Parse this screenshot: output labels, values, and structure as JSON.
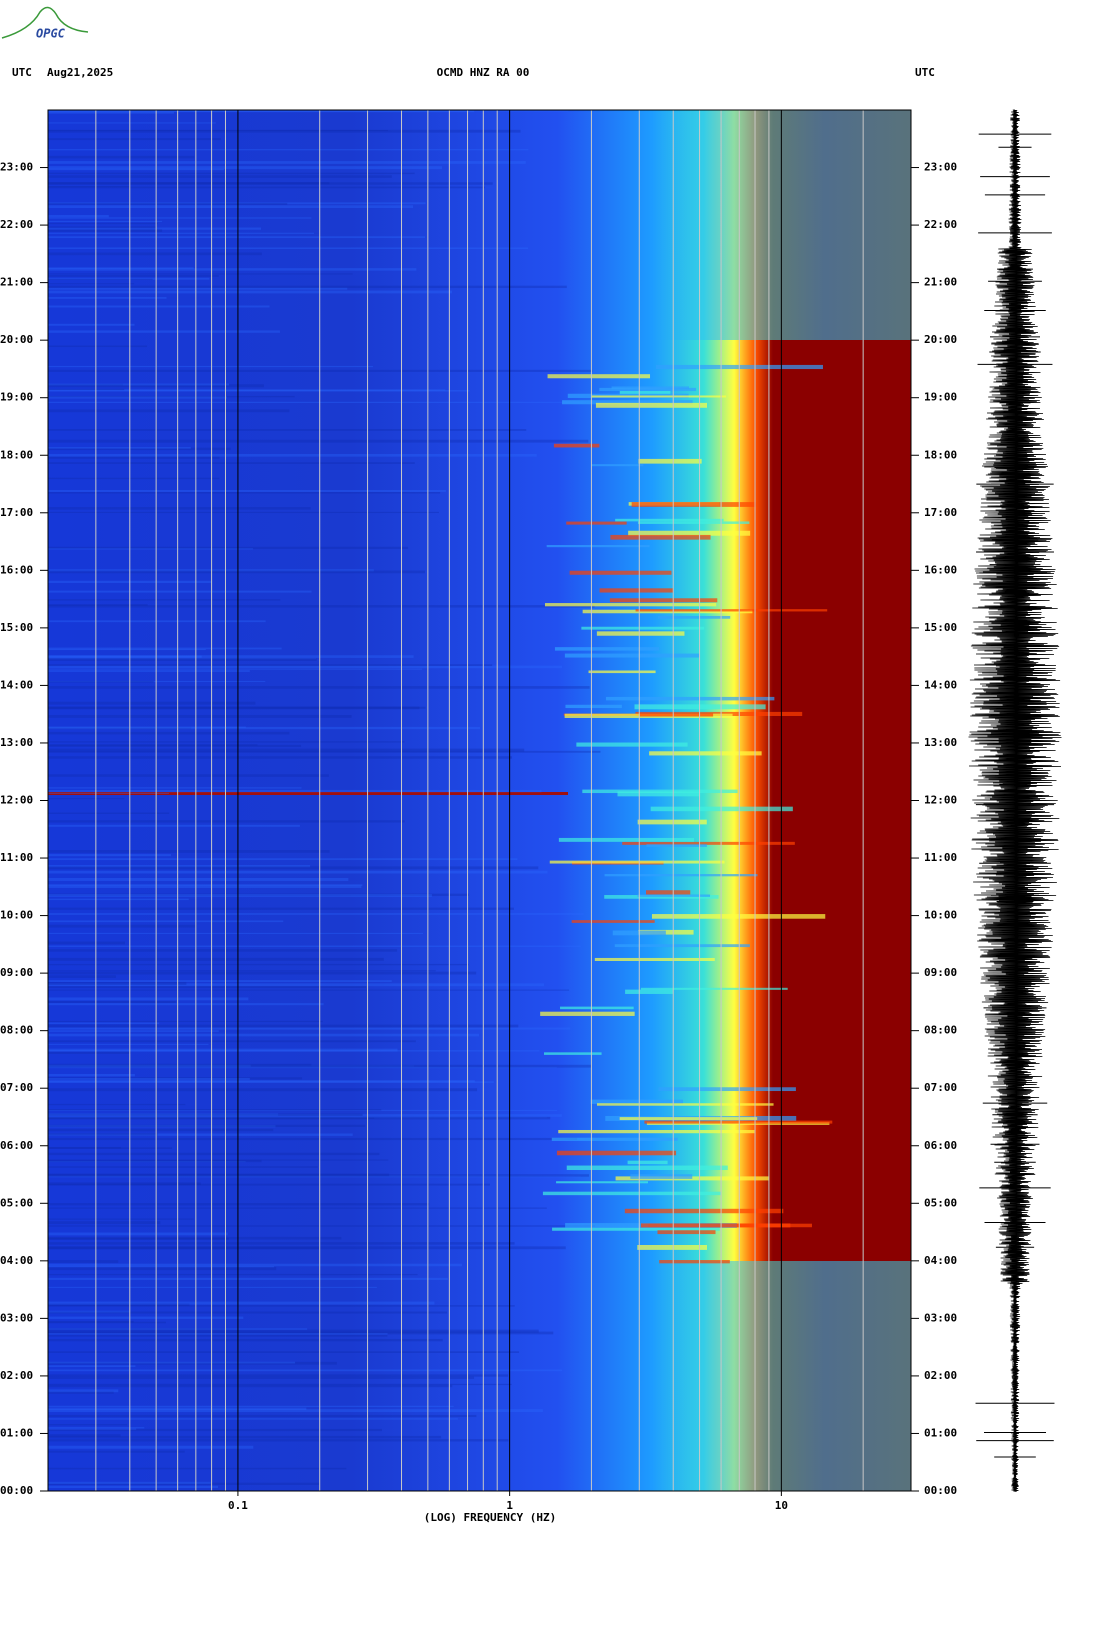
{
  "logo": "OPGC",
  "header": {
    "left_zone": "UTC",
    "date": "Aug21,2025",
    "station": "OCMD HNZ RA 00",
    "right_zone": "UTC"
  },
  "chart_data": {
    "type": "spectrogram",
    "xlabel": "(LOG) FREQUENCY (HZ)",
    "xscale": "log",
    "xlim": [
      0.02,
      30
    ],
    "xticks": [
      0.1,
      1,
      10
    ],
    "ylim": [
      0,
      24
    ],
    "yticks": [
      {
        "value": 0,
        "label": "00:00"
      },
      {
        "value": 1,
        "label": "01:00"
      },
      {
        "value": 2,
        "label": "02:00"
      },
      {
        "value": 3,
        "label": "03:00"
      },
      {
        "value": 4,
        "label": "04:00"
      },
      {
        "value": 5,
        "label": "05:00"
      },
      {
        "value": 6,
        "label": "06:00"
      },
      {
        "value": 7,
        "label": "07:00"
      },
      {
        "value": 8,
        "label": "08:00"
      },
      {
        "value": 9,
        "label": "09:00"
      },
      {
        "value": 10,
        "label": "10:00"
      },
      {
        "value": 11,
        "label": "11:00"
      },
      {
        "value": 12,
        "label": "12:00"
      },
      {
        "value": 13,
        "label": "13:00"
      },
      {
        "value": 14,
        "label": "14:00"
      },
      {
        "value": 15,
        "label": "15:00"
      },
      {
        "value": 16,
        "label": "16:00"
      },
      {
        "value": 17,
        "label": "17:00"
      },
      {
        "value": 18,
        "label": "18:00"
      },
      {
        "value": 19,
        "label": "19:00"
      },
      {
        "value": 20,
        "label": "20:00"
      },
      {
        "value": 21,
        "label": "21:00"
      },
      {
        "value": 22,
        "label": "22:00"
      },
      {
        "value": 23,
        "label": "23:00"
      }
    ],
    "grid": true
  }
}
